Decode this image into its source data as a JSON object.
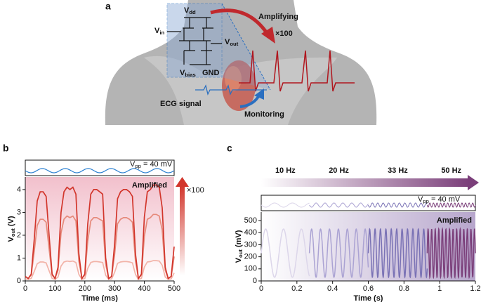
{
  "panel_a": {
    "label": "a",
    "amplifying": "Amplifying",
    "factor": "×100",
    "ecg": "ECG signal",
    "monitoring": "Monitoring",
    "circuit": {
      "vdd": {
        "symbol": "V",
        "sub": "dd"
      },
      "vin": {
        "symbol": "V",
        "sub": "in"
      },
      "vout": {
        "symbol": "V",
        "sub": "out"
      },
      "vbias": {
        "symbol": "V",
        "sub": "bias"
      },
      "gnd": "GND"
    }
  },
  "chart_data": [
    {
      "panel": "b",
      "type": "line",
      "x": [
        0,
        10,
        20,
        30,
        40,
        50,
        60,
        70,
        80,
        90,
        100,
        110,
        120,
        130,
        140,
        150,
        160,
        170,
        180,
        190,
        200,
        210,
        220,
        230,
        240,
        250,
        260,
        270,
        280,
        290,
        300,
        310,
        320,
        330,
        340,
        350,
        360,
        370,
        380,
        390,
        400,
        410,
        420,
        430,
        440,
        450,
        460,
        470,
        480,
        490,
        500
      ],
      "xlim": [
        0,
        500
      ],
      "ylim": [
        0,
        4.55
      ],
      "xticks": [
        0,
        100,
        200,
        300,
        400,
        500
      ],
      "yticks": [
        0,
        1,
        2,
        3,
        4
      ],
      "xlabel": "Time (ms)",
      "ylabel": {
        "symbol": "V",
        "sub": "out",
        "unit": " (V)"
      },
      "annotation": "Amplified",
      "gain_label": "×100",
      "input_label": {
        "symbol": "V",
        "sub": "pp",
        "text": " = 40 mV"
      },
      "series": [
        {
          "color": "#f2b3a8",
          "values": [
            0.09,
            0.07,
            0.11,
            0.41,
            0.75,
            0.83,
            0.83,
            0.79,
            0.45,
            0.11,
            0.07,
            0.17,
            0.65,
            0.83,
            0.87,
            0.85,
            0.87,
            0.81,
            0.29,
            0.07,
            0.11,
            0.55,
            0.81,
            0.85,
            0.85,
            0.83,
            0.81,
            0.25,
            0.07,
            0.09,
            0.37,
            0.77,
            0.83,
            0.85,
            0.85,
            0.83,
            0.79,
            0.29,
            0.07,
            0.11,
            0.61,
            0.83,
            0.85,
            0.89,
            0.89,
            0.87,
            0.69,
            0.17,
            0.07,
            0.09,
            0.35
          ]
        },
        {
          "color": "#e68a7b",
          "values": [
            0.19,
            0.12,
            0.25,
            1.27,
            2.43,
            2.7,
            2.7,
            2.57,
            1.41,
            0.25,
            0.12,
            0.46,
            2.09,
            2.7,
            2.84,
            2.77,
            2.84,
            2.63,
            0.87,
            0.12,
            0.25,
            1.75,
            2.63,
            2.77,
            2.77,
            2.7,
            2.63,
            0.73,
            0.12,
            0.19,
            1.14,
            2.5,
            2.7,
            2.77,
            2.77,
            2.7,
            2.57,
            0.87,
            0.12,
            0.25,
            1.95,
            2.7,
            2.77,
            2.91,
            2.91,
            2.84,
            2.23,
            0.46,
            0.12,
            0.19,
            1.07
          ]
        },
        {
          "color": "#d2362c",
          "values": [
            0.2,
            0.1,
            0.3,
            1.8,
            3.5,
            3.9,
            3.9,
            3.7,
            2.0,
            0.3,
            0.1,
            0.6,
            3.0,
            3.9,
            4.1,
            4.0,
            4.1,
            3.8,
            1.2,
            0.1,
            0.3,
            2.5,
            3.8,
            4.0,
            4.0,
            3.9,
            3.8,
            1.0,
            0.1,
            0.2,
            1.6,
            3.6,
            3.9,
            4.0,
            4.0,
            3.9,
            3.7,
            1.2,
            0.1,
            0.3,
            2.8,
            3.9,
            4.0,
            4.2,
            4.2,
            4.1,
            3.2,
            0.6,
            0.1,
            0.2,
            1.5
          ]
        }
      ]
    },
    {
      "panel": "c",
      "type": "line",
      "xlim": [
        0,
        1.2
      ],
      "ylim": [
        0,
        570
      ],
      "xticks": [
        0,
        0.2,
        0.4,
        0.6,
        0.8,
        1,
        1.2
      ],
      "yticks": [
        0,
        100,
        200,
        300,
        400,
        500
      ],
      "xlabel": "Time (s)",
      "ylabel": {
        "symbol": "V",
        "sub": "out",
        "unit": " (mV)"
      },
      "annotation": "Amplified",
      "input_label": {
        "symbol": "V",
        "sub": "pp",
        "text": " = 40 mV"
      },
      "wave_min": 30,
      "wave_max": 430,
      "segments": [
        {
          "value": 10,
          "label": "10 Hz",
          "start": 0,
          "end": 0.27,
          "color": "#dcd6ea"
        },
        {
          "value": 20,
          "label": "20 Hz",
          "start": 0.27,
          "end": 0.6,
          "color": "#aba3d3"
        },
        {
          "value": 33,
          "label": "33 Hz",
          "start": 0.6,
          "end": 0.93,
          "color": "#7a72b5"
        },
        {
          "value": 50,
          "label": "50 Hz",
          "start": 0.93,
          "end": 1.2,
          "color": "#7b3f7a"
        }
      ]
    }
  ]
}
